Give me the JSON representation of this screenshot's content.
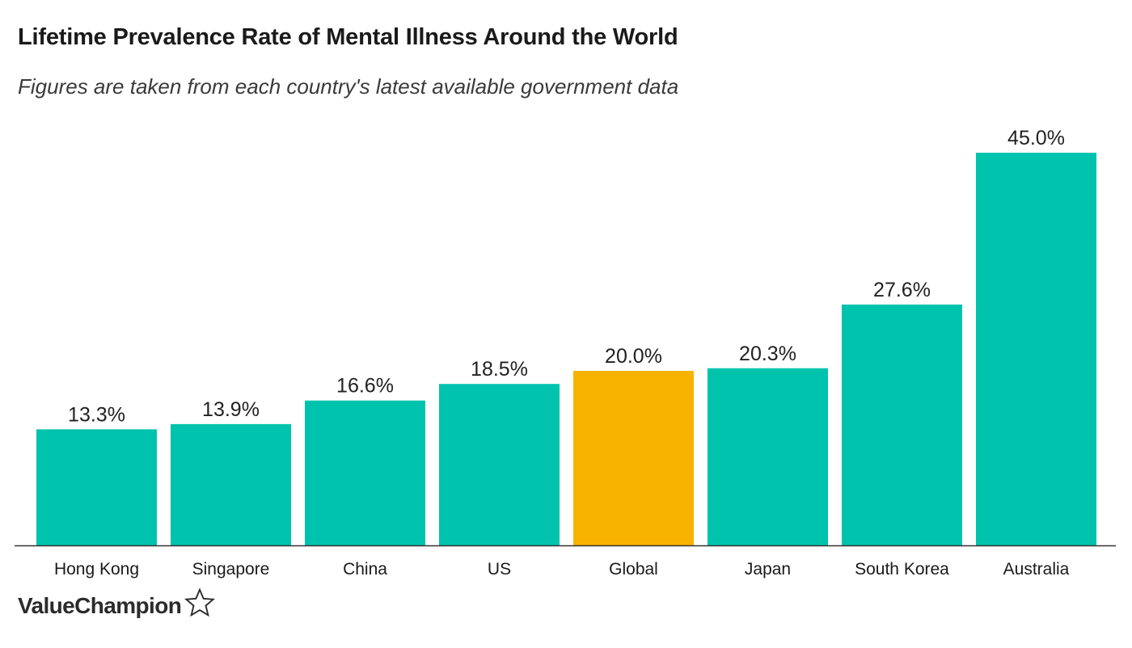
{
  "title": "Lifetime Prevalence Rate of Mental Illness Around the World",
  "subtitle": "Figures are taken from each country's latest available government data",
  "brand": {
    "text": "ValueChampion",
    "icon": "star-outline-icon"
  },
  "colors": {
    "default_bar": "#00C3AD",
    "highlight_bar": "#F8B300",
    "axis": "#333333"
  },
  "chart_data": {
    "type": "bar",
    "categories": [
      "Hong Kong",
      "Singapore",
      "China",
      "US",
      "Global",
      "Japan",
      "South Korea",
      "Australia"
    ],
    "values": [
      13.3,
      13.9,
      16.6,
      18.5,
      20.0,
      20.3,
      27.6,
      45.0
    ],
    "value_labels": [
      "13.3%",
      "13.9%",
      "16.6%",
      "18.5%",
      "20.0%",
      "20.3%",
      "27.6%",
      "45.0%"
    ],
    "highlight": [
      "Global"
    ],
    "ylim": [
      0,
      45
    ],
    "grid": false,
    "legend": "none",
    "xlabel": "",
    "ylabel": ""
  }
}
